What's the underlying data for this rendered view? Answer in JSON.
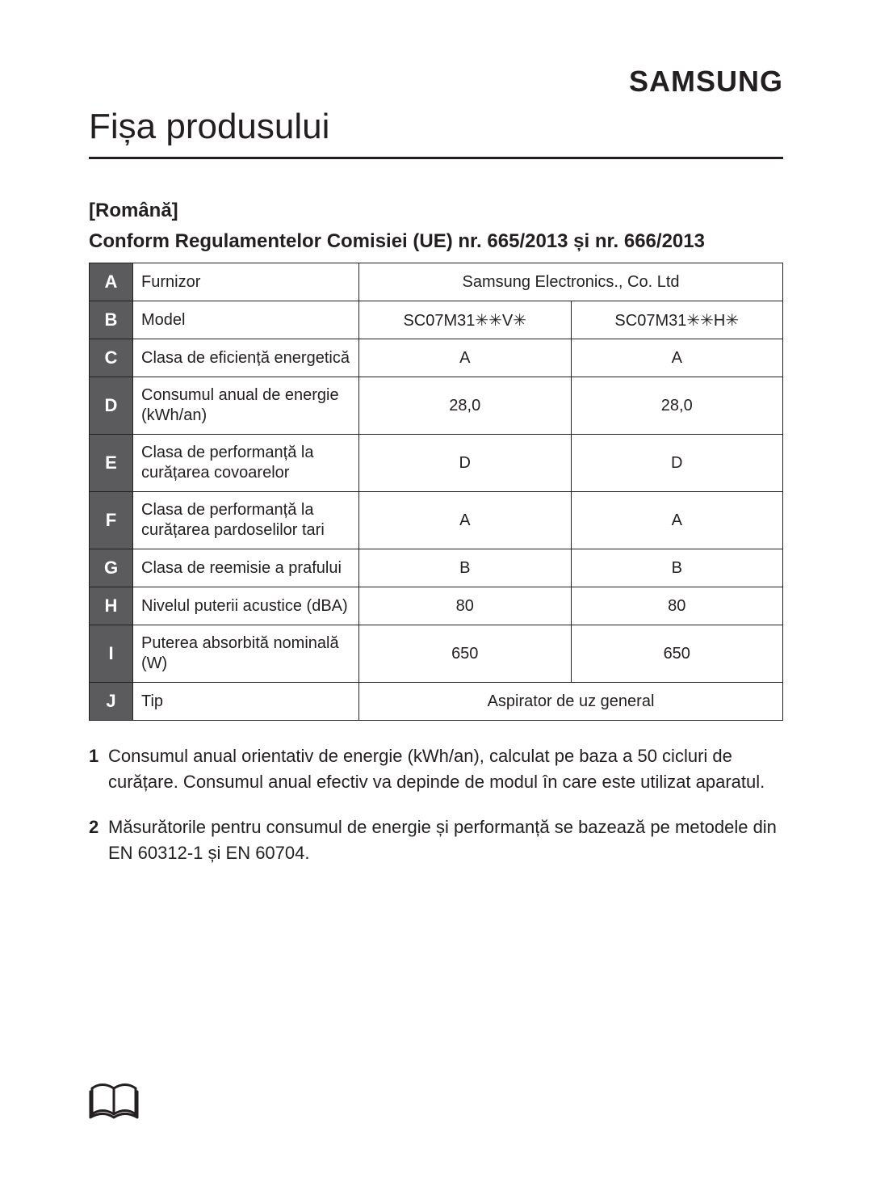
{
  "brand": "SAMSUNG",
  "title": "Fișa produsului",
  "lang_label": "[Română]",
  "subtitle": "Conform Regulamentelor Comisiei (UE) nr. 665/2013 și nr. 666/2013",
  "table": {
    "header_bg": "#5b5b5d",
    "header_fg": "#ffffff",
    "border_color": "#231f20",
    "cell_fontsize": 20,
    "rows": [
      {
        "letter": "A",
        "label": "Furnizor",
        "values": [
          "Samsung Electronics., Co. Ltd"
        ],
        "colspan": 2
      },
      {
        "letter": "B",
        "label": "Model",
        "values": [
          "SC07M31✳✳V✳",
          "SC07M31✳✳H✳"
        ]
      },
      {
        "letter": "C",
        "label": "Clasa de eficiență energetică",
        "values": [
          "A",
          "A"
        ]
      },
      {
        "letter": "D",
        "label": "Consumul anual de energie (kWh/an)",
        "values": [
          "28,0",
          "28,0"
        ]
      },
      {
        "letter": "E",
        "label": "Clasa de performanță la curățarea covoarelor",
        "values": [
          "D",
          "D"
        ]
      },
      {
        "letter": "F",
        "label": "Clasa de performanță la curățarea pardoselilor tari",
        "values": [
          "A",
          "A"
        ]
      },
      {
        "letter": "G",
        "label": "Clasa de reemisie a prafului",
        "values": [
          "B",
          "B"
        ]
      },
      {
        "letter": "H",
        "label": "Nivelul puterii acustice (dBA)",
        "values": [
          "80",
          "80"
        ]
      },
      {
        "letter": "I",
        "label": "Puterea absorbită nominală (W)",
        "values": [
          "650",
          "650"
        ]
      },
      {
        "letter": "J",
        "label": "Tip",
        "values": [
          "Aspirator de uz general"
        ],
        "colspan": 2
      }
    ]
  },
  "notes": [
    {
      "num": "1",
      "text": "Consumul anual orientativ de energie (kWh/an), calculat pe baza a 50 cicluri de curățare. Consumul anual efectiv va depinde de modul în care este utilizat aparatul."
    },
    {
      "num": "2",
      "text": "Măsurătorile pentru consumul de energie și performanță se bazează pe metodele din EN 60312-1 și EN 60704."
    }
  ],
  "icon": {
    "name": "manual-book-icon",
    "stroke": "#231f20"
  }
}
